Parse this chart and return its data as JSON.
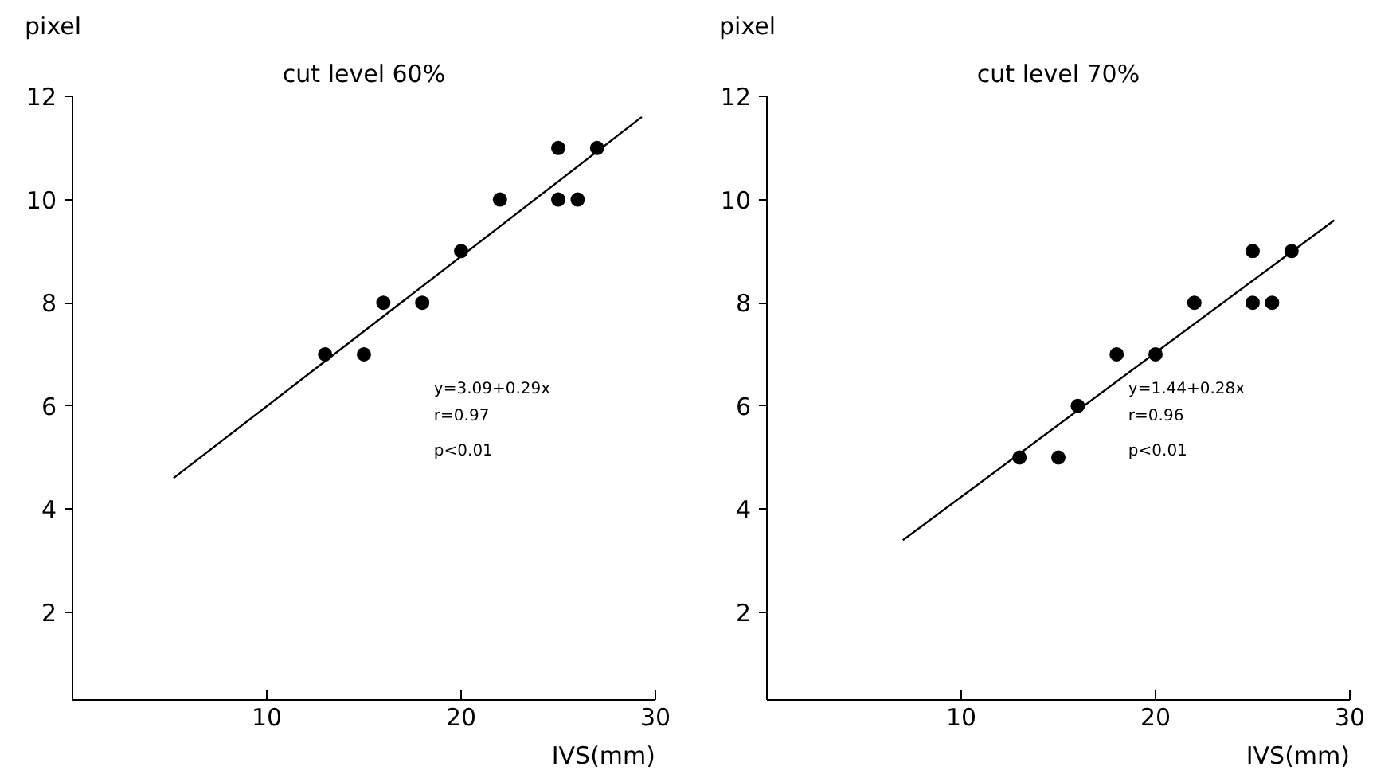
{
  "chart_data": [
    {
      "type": "scatter",
      "title": "cut level 60%",
      "xlabel": "IVS(mm)",
      "ylabel": "pixel",
      "xlim": [
        0,
        30
      ],
      "ylim": [
        0.3,
        12
      ],
      "xticks": [
        10,
        20,
        30
      ],
      "yticks": [
        2,
        4,
        6,
        8,
        10,
        12
      ],
      "grid": false,
      "annotations": [
        "y=3.09+0.29x",
        "r=0.97",
        "p<0.01"
      ],
      "series": [
        {
          "marker": "circle",
          "color": "#000000",
          "x": [
            13,
            15,
            16,
            18,
            20,
            22,
            25,
            25,
            26,
            27
          ],
          "values": [
            7,
            7,
            8,
            8,
            9,
            10,
            11,
            10,
            10,
            11
          ]
        },
        {
          "type": "line",
          "color": "#000000",
          "x": [
            5.2,
            29.3
          ],
          "values": [
            4.6,
            11.6
          ]
        }
      ]
    },
    {
      "type": "scatter",
      "title": "cut level 70%",
      "xlabel": "IVS(mm)",
      "ylabel": "pixel",
      "xlim": [
        0,
        30
      ],
      "ylim": [
        0.3,
        12
      ],
      "xticks": [
        10,
        20,
        30
      ],
      "yticks": [
        2,
        4,
        6,
        8,
        10,
        12
      ],
      "grid": false,
      "annotations": [
        "y=1.44+0.28x",
        "r=0.96",
        "p<0.01"
      ],
      "series": [
        {
          "marker": "circle",
          "color": "#000000",
          "x": [
            13,
            15,
            16,
            18,
            20,
            22,
            25,
            25,
            26,
            27
          ],
          "values": [
            5,
            5,
            6,
            7,
            7,
            8,
            9,
            8,
            8,
            9
          ]
        },
        {
          "type": "line",
          "color": "#000000",
          "x": [
            7,
            29.2
          ],
          "values": [
            3.4,
            9.6
          ]
        }
      ]
    }
  ]
}
